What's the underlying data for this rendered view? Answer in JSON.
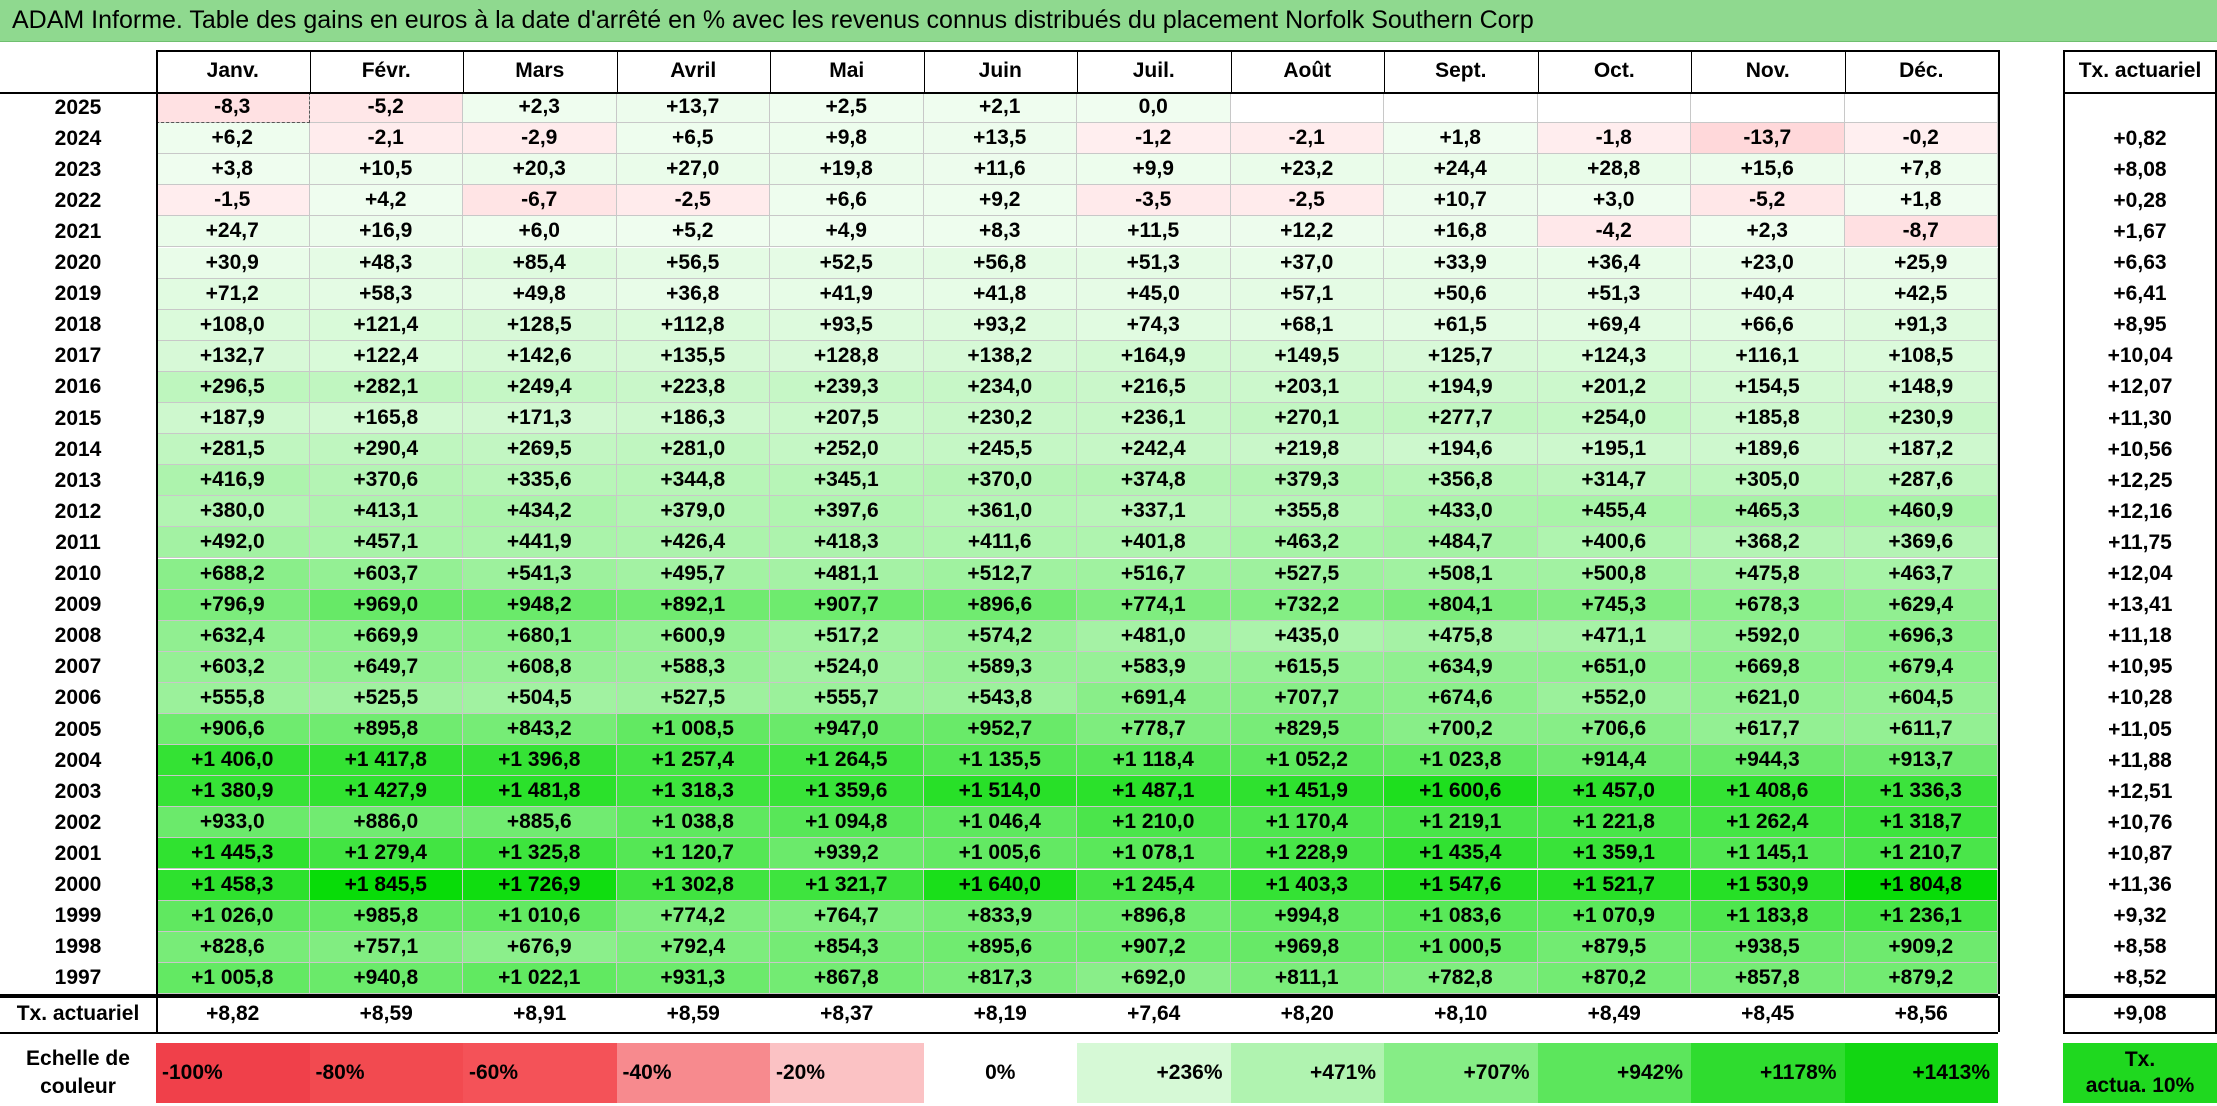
{
  "title": "ADAM Informe. Table des gains en euros à la date d'arrêté en % avec les revenus connus distribués du placement Norfolk Southern Corp",
  "months": [
    "Janv.",
    "Févr.",
    "Mars",
    "Avril",
    "Mai",
    "Juin",
    "Juil.",
    "Août",
    "Sept.",
    "Oct.",
    "Nov.",
    "Déc."
  ],
  "rate_header": "Tx. actuariel",
  "rows": [
    {
      "year": "2025",
      "values": [
        "-8,3",
        "-5,2",
        "+2,3",
        "+13,7",
        "+2,5",
        "+2,1",
        "0,0",
        "",
        "",
        "",
        "",
        ""
      ],
      "rate": ""
    },
    {
      "year": "2024",
      "values": [
        "+6,2",
        "-2,1",
        "-2,9",
        "+6,5",
        "+9,8",
        "+13,5",
        "-1,2",
        "-2,1",
        "+1,8",
        "-1,8",
        "-13,7",
        "-0,2"
      ],
      "rate": "+0,82"
    },
    {
      "year": "2023",
      "values": [
        "+3,8",
        "+10,5",
        "+20,3",
        "+27,0",
        "+19,8",
        "+11,6",
        "+9,9",
        "+23,2",
        "+24,4",
        "+28,8",
        "+15,6",
        "+7,8"
      ],
      "rate": "+8,08"
    },
    {
      "year": "2022",
      "values": [
        "-1,5",
        "+4,2",
        "-6,7",
        "-2,5",
        "+6,6",
        "+9,2",
        "-3,5",
        "-2,5",
        "+10,7",
        "+3,0",
        "-5,2",
        "+1,8"
      ],
      "rate": "+0,28"
    },
    {
      "year": "2021",
      "values": [
        "+24,7",
        "+16,9",
        "+6,0",
        "+5,2",
        "+4,9",
        "+8,3",
        "+11,5",
        "+12,2",
        "+16,8",
        "-4,2",
        "+2,3",
        "-8,7"
      ],
      "rate": "+1,67"
    },
    {
      "year": "2020",
      "values": [
        "+30,9",
        "+48,3",
        "+85,4",
        "+56,5",
        "+52,5",
        "+56,8",
        "+51,3",
        "+37,0",
        "+33,9",
        "+36,4",
        "+23,0",
        "+25,9"
      ],
      "rate": "+6,63"
    },
    {
      "year": "2019",
      "values": [
        "+71,2",
        "+58,3",
        "+49,8",
        "+36,8",
        "+41,9",
        "+41,8",
        "+45,0",
        "+57,1",
        "+50,6",
        "+51,3",
        "+40,4",
        "+42,5"
      ],
      "rate": "+6,41"
    },
    {
      "year": "2018",
      "values": [
        "+108,0",
        "+121,4",
        "+128,5",
        "+112,8",
        "+93,5",
        "+93,2",
        "+74,3",
        "+68,1",
        "+61,5",
        "+69,4",
        "+66,6",
        "+91,3"
      ],
      "rate": "+8,95"
    },
    {
      "year": "2017",
      "values": [
        "+132,7",
        "+122,4",
        "+142,6",
        "+135,5",
        "+128,8",
        "+138,2",
        "+164,9",
        "+149,5",
        "+125,7",
        "+124,3",
        "+116,1",
        "+108,5"
      ],
      "rate": "+10,04"
    },
    {
      "year": "2016",
      "values": [
        "+296,5",
        "+282,1",
        "+249,4",
        "+223,8",
        "+239,3",
        "+234,0",
        "+216,5",
        "+203,1",
        "+194,9",
        "+201,2",
        "+154,5",
        "+148,9"
      ],
      "rate": "+12,07"
    },
    {
      "year": "2015",
      "values": [
        "+187,9",
        "+165,8",
        "+171,3",
        "+186,3",
        "+207,5",
        "+230,2",
        "+236,1",
        "+270,1",
        "+277,7",
        "+254,0",
        "+185,8",
        "+230,9"
      ],
      "rate": "+11,30"
    },
    {
      "year": "2014",
      "values": [
        "+281,5",
        "+290,4",
        "+269,5",
        "+281,0",
        "+252,0",
        "+245,5",
        "+242,4",
        "+219,8",
        "+194,6",
        "+195,1",
        "+189,6",
        "+187,2"
      ],
      "rate": "+10,56"
    },
    {
      "year": "2013",
      "values": [
        "+416,9",
        "+370,6",
        "+335,6",
        "+344,8",
        "+345,1",
        "+370,0",
        "+374,8",
        "+379,3",
        "+356,8",
        "+314,7",
        "+305,0",
        "+287,6"
      ],
      "rate": "+12,25"
    },
    {
      "year": "2012",
      "values": [
        "+380,0",
        "+413,1",
        "+434,2",
        "+379,0",
        "+397,6",
        "+361,0",
        "+337,1",
        "+355,8",
        "+433,0",
        "+455,4",
        "+465,3",
        "+460,9"
      ],
      "rate": "+12,16"
    },
    {
      "year": "2011",
      "values": [
        "+492,0",
        "+457,1",
        "+441,9",
        "+426,4",
        "+418,3",
        "+411,6",
        "+401,8",
        "+463,2",
        "+484,7",
        "+400,6",
        "+368,2",
        "+369,6"
      ],
      "rate": "+11,75"
    },
    {
      "year": "2010",
      "values": [
        "+688,2",
        "+603,7",
        "+541,3",
        "+495,7",
        "+481,1",
        "+512,7",
        "+516,7",
        "+527,5",
        "+508,1",
        "+500,8",
        "+475,8",
        "+463,7"
      ],
      "rate": "+12,04"
    },
    {
      "year": "2009",
      "values": [
        "+796,9",
        "+969,0",
        "+948,2",
        "+892,1",
        "+907,7",
        "+896,6",
        "+774,1",
        "+732,2",
        "+804,1",
        "+745,3",
        "+678,3",
        "+629,4"
      ],
      "rate": "+13,41"
    },
    {
      "year": "2008",
      "values": [
        "+632,4",
        "+669,9",
        "+680,1",
        "+600,9",
        "+517,2",
        "+574,2",
        "+481,0",
        "+435,0",
        "+475,8",
        "+471,1",
        "+592,0",
        "+696,3"
      ],
      "rate": "+11,18"
    },
    {
      "year": "2007",
      "values": [
        "+603,2",
        "+649,7",
        "+608,8",
        "+588,3",
        "+524,0",
        "+589,3",
        "+583,9",
        "+615,5",
        "+634,9",
        "+651,0",
        "+669,8",
        "+679,4"
      ],
      "rate": "+10,95"
    },
    {
      "year": "2006",
      "values": [
        "+555,8",
        "+525,5",
        "+504,5",
        "+527,5",
        "+555,7",
        "+543,8",
        "+691,4",
        "+707,7",
        "+674,6",
        "+552,0",
        "+621,0",
        "+604,5"
      ],
      "rate": "+10,28"
    },
    {
      "year": "2005",
      "values": [
        "+906,6",
        "+895,8",
        "+843,2",
        "+1 008,5",
        "+947,0",
        "+952,7",
        "+778,7",
        "+829,5",
        "+700,2",
        "+706,6",
        "+617,7",
        "+611,7"
      ],
      "rate": "+11,05"
    },
    {
      "year": "2004",
      "values": [
        "+1 406,0",
        "+1 417,8",
        "+1 396,8",
        "+1 257,4",
        "+1 264,5",
        "+1 135,5",
        "+1 118,4",
        "+1 052,2",
        "+1 023,8",
        "+914,4",
        "+944,3",
        "+913,7"
      ],
      "rate": "+11,88"
    },
    {
      "year": "2003",
      "values": [
        "+1 380,9",
        "+1 427,9",
        "+1 481,8",
        "+1 318,3",
        "+1 359,6",
        "+1 514,0",
        "+1 487,1",
        "+1 451,9",
        "+1 600,6",
        "+1 457,0",
        "+1 408,6",
        "+1 336,3"
      ],
      "rate": "+12,51"
    },
    {
      "year": "2002",
      "values": [
        "+933,0",
        "+886,0",
        "+885,6",
        "+1 038,8",
        "+1 094,8",
        "+1 046,4",
        "+1 210,0",
        "+1 170,4",
        "+1 219,1",
        "+1 221,8",
        "+1 262,4",
        "+1 318,7"
      ],
      "rate": "+10,76"
    },
    {
      "year": "2001",
      "values": [
        "+1 445,3",
        "+1 279,4",
        "+1 325,8",
        "+1 120,7",
        "+939,2",
        "+1 005,6",
        "+1 078,1",
        "+1 228,9",
        "+1 435,4",
        "+1 359,1",
        "+1 145,1",
        "+1 210,7"
      ],
      "rate": "+10,87"
    },
    {
      "year": "2000",
      "values": [
        "+1 458,3",
        "+1 845,5",
        "+1 726,9",
        "+1 302,8",
        "+1 321,7",
        "+1 640,0",
        "+1 245,4",
        "+1 403,3",
        "+1 547,6",
        "+1 521,7",
        "+1 530,9",
        "+1 804,8"
      ],
      "rate": "+11,36"
    },
    {
      "year": "1999",
      "values": [
        "+1 026,0",
        "+985,8",
        "+1 010,6",
        "+774,2",
        "+764,7",
        "+833,9",
        "+896,8",
        "+994,8",
        "+1 083,6",
        "+1 070,9",
        "+1 183,8",
        "+1 236,1"
      ],
      "rate": "+9,32"
    },
    {
      "year": "1998",
      "values": [
        "+828,6",
        "+757,1",
        "+676,9",
        "+792,4",
        "+854,3",
        "+895,6",
        "+907,2",
        "+969,8",
        "+1 000,5",
        "+879,5",
        "+938,5",
        "+909,2"
      ],
      "rate": "+8,58"
    },
    {
      "year": "1997",
      "values": [
        "+1 005,8",
        "+940,8",
        "+1 022,1",
        "+931,3",
        "+867,8",
        "+817,3",
        "+692,0",
        "+811,1",
        "+782,8",
        "+870,2",
        "+857,8",
        "+879,2"
      ],
      "rate": "+8,52"
    }
  ],
  "footer": {
    "label": "Tx. actuariel",
    "values": [
      "+8,82",
      "+8,59",
      "+8,91",
      "+8,59",
      "+8,37",
      "+8,19",
      "+7,64",
      "+8,20",
      "+8,10",
      "+8,49",
      "+8,45",
      "+8,56"
    ],
    "overall": "+9,08"
  },
  "scale": {
    "label_line1": "Echelle de",
    "label_line2": "couleur",
    "cells": [
      {
        "text": "-100%",
        "color": "#f0404a"
      },
      {
        "text": "-80%",
        "color": "#f24a50"
      },
      {
        "text": "-60%",
        "color": "#f45258"
      },
      {
        "text": "-40%",
        "color": "#f78a8e"
      },
      {
        "text": "-20%",
        "color": "#fbc2c4"
      },
      {
        "text": "0%",
        "color": "#ffffff"
      },
      {
        "text": "+236%",
        "color": "#d6f9d6"
      },
      {
        "text": "+471%",
        "color": "#b0f3b0"
      },
      {
        "text": "+707%",
        "color": "#86ed86"
      },
      {
        "text": "+942%",
        "color": "#5ce65c"
      },
      {
        "text": "+1178%",
        "color": "#2fdc2f"
      },
      {
        "text": "+1413%",
        "color": "#12d612"
      }
    ],
    "right_line1": "Tx.",
    "right_line2": "actua. 10%",
    "right_color": "#1fd81f"
  }
}
